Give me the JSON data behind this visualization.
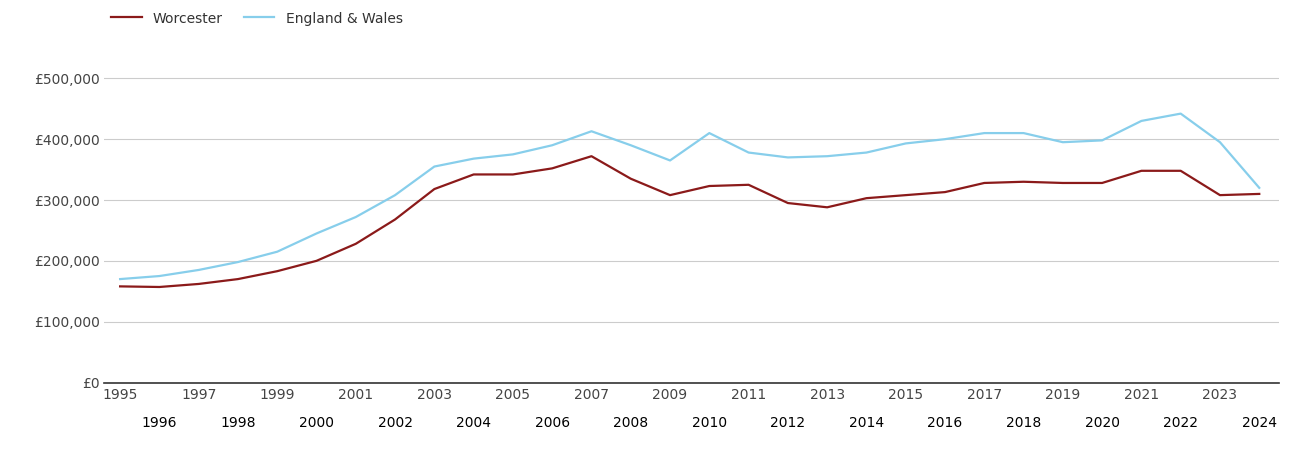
{
  "years": [
    1995,
    1996,
    1997,
    1998,
    1999,
    2000,
    2001,
    2002,
    2003,
    2004,
    2005,
    2006,
    2007,
    2008,
    2009,
    2010,
    2011,
    2012,
    2013,
    2014,
    2015,
    2016,
    2017,
    2018,
    2019,
    2020,
    2021,
    2022,
    2023,
    2024
  ],
  "worcester": [
    158000,
    157000,
    162000,
    170000,
    183000,
    200000,
    228000,
    268000,
    318000,
    342000,
    342000,
    352000,
    372000,
    335000,
    308000,
    323000,
    325000,
    295000,
    288000,
    303000,
    308000,
    313000,
    328000,
    330000,
    328000,
    328000,
    348000,
    348000,
    308000,
    310000
  ],
  "england_wales": [
    170000,
    175000,
    185000,
    198000,
    215000,
    245000,
    272000,
    308000,
    355000,
    368000,
    375000,
    390000,
    413000,
    390000,
    365000,
    410000,
    378000,
    370000,
    372000,
    378000,
    393000,
    400000,
    410000,
    410000,
    395000,
    398000,
    430000,
    442000,
    395000,
    320000
  ],
  "worcester_color": "#8B1A1A",
  "england_wales_color": "#87CEEB",
  "background_color": "#ffffff",
  "grid_color": "#cccccc",
  "ytick_labels": [
    "£0",
    "£100,000",
    "£200,000",
    "£300,000",
    "£400,000",
    "£500,000"
  ],
  "ytick_values": [
    0,
    100000,
    200000,
    300000,
    400000,
    500000
  ],
  "ylim": [
    0,
    540000
  ],
  "xlim_min": 1994.6,
  "xlim_max": 2024.5,
  "worcester_label": "Worcester",
  "england_wales_label": "England & Wales",
  "line_width": 1.6
}
